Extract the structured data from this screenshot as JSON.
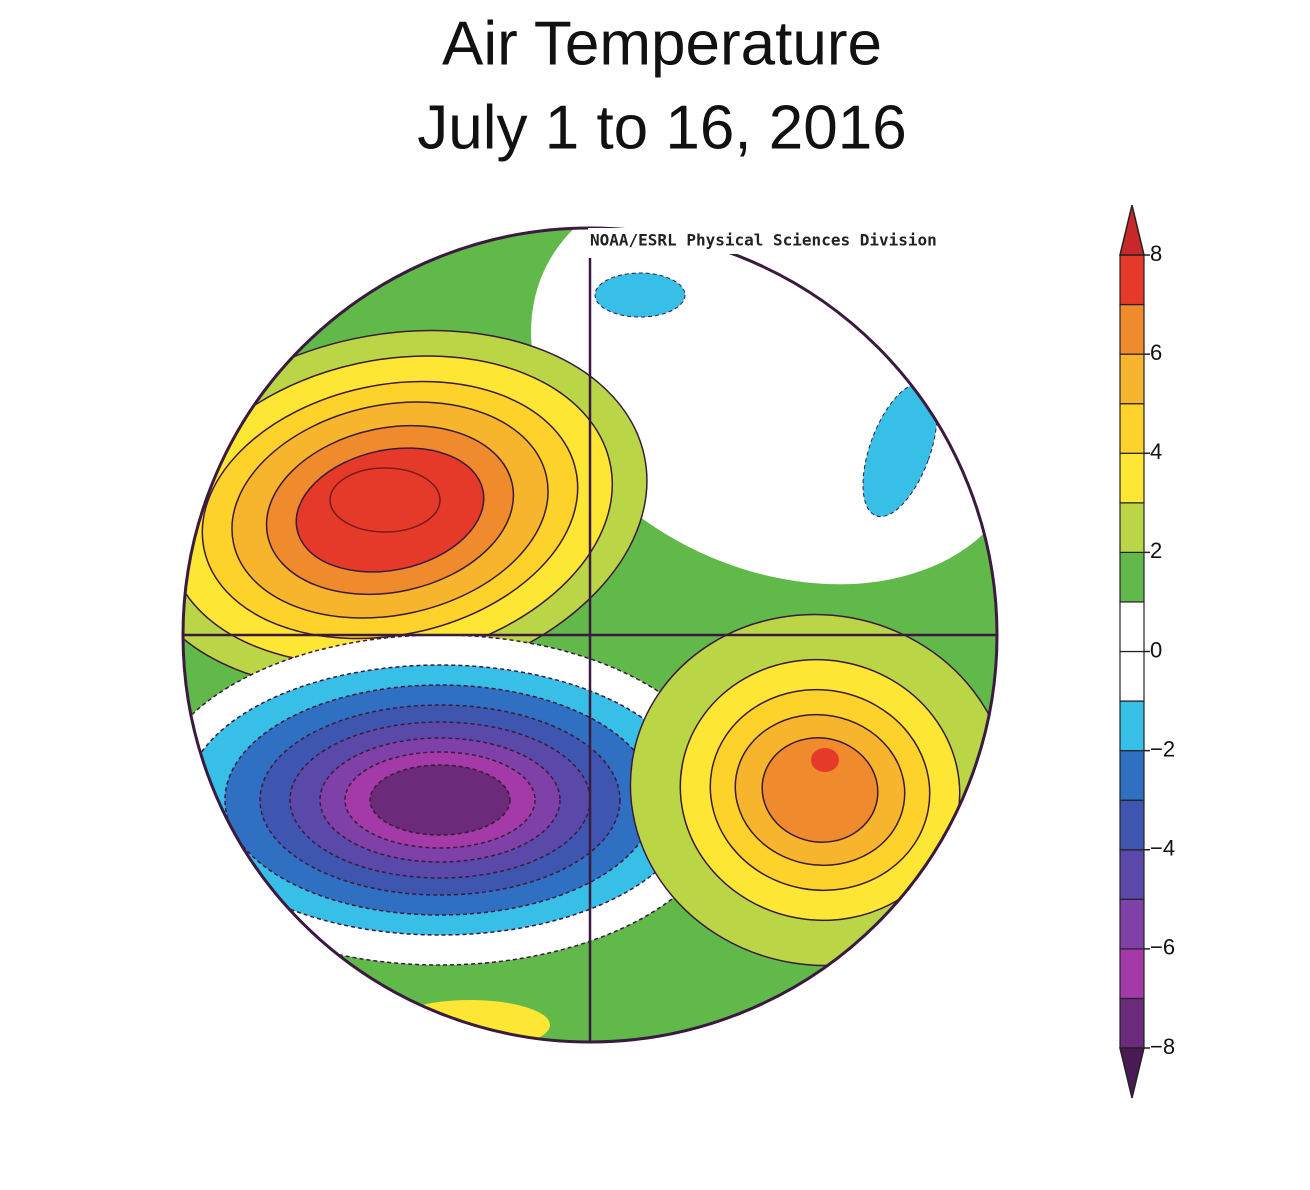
{
  "chart_data": {
    "type": "map",
    "title": "Air Temperature",
    "subtitle": "July 1 to 16, 2016",
    "credit": "NOAA/ESRL Physical Sciences Division",
    "colorbar": {
      "lim": [
        -8,
        8
      ],
      "colors": [
        "#6b2a7a",
        "#a43aa8",
        "#7f40a8",
        "#5b49aa",
        "#3f56b0",
        "#2f70c2",
        "#38bfe8",
        "#ffffff",
        "#ffffff",
        "#61b94a",
        "#bad646",
        "#fde634",
        "#fdd22b",
        "#f7b52d",
        "#ef8a2d",
        "#e5392a"
      ],
      "under_color": "#4a1a55",
      "over_color": "#c8282a",
      "ticks": [
        8,
        6,
        4,
        2,
        0,
        {
          "value": -2,
          "label": "−2"
        },
        {
          "value": -4,
          "label": "−4"
        },
        {
          "value": -6,
          "label": "−6"
        },
        {
          "value": -8,
          "label": "−8"
        }
      ]
    }
  }
}
